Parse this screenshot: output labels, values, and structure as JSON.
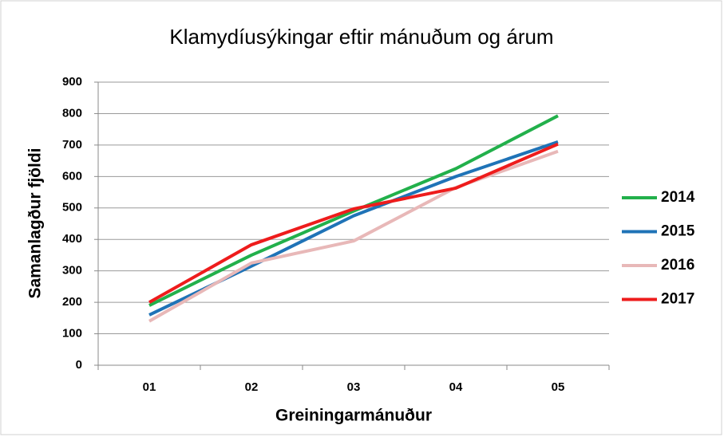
{
  "chart_data": {
    "type": "line",
    "title": "Klamydíusýkingar eftir mánuðum og árum",
    "x_label": "Greiningarmánuður",
    "y_label": "Samanlagður fjöldi",
    "categories": [
      "01",
      "02",
      "03",
      "04",
      "05"
    ],
    "series": [
      {
        "name": "2014",
        "color": "#22b04b",
        "values": [
          190,
          350,
          490,
          625,
          793
        ]
      },
      {
        "name": "2015",
        "color": "#1f73b7",
        "values": [
          160,
          315,
          475,
          600,
          710
        ]
      },
      {
        "name": "2016",
        "color": "#e8b8b8",
        "values": [
          140,
          325,
          395,
          565,
          680
        ]
      },
      {
        "name": "2017",
        "color": "#ee1c1c",
        "values": [
          200,
          383,
          497,
          563,
          703
        ]
      }
    ],
    "ylim": [
      0,
      900
    ],
    "yticks": [
      0,
      100,
      200,
      300,
      400,
      500,
      600,
      700,
      800,
      900
    ],
    "grid": true,
    "legend": "right"
  }
}
